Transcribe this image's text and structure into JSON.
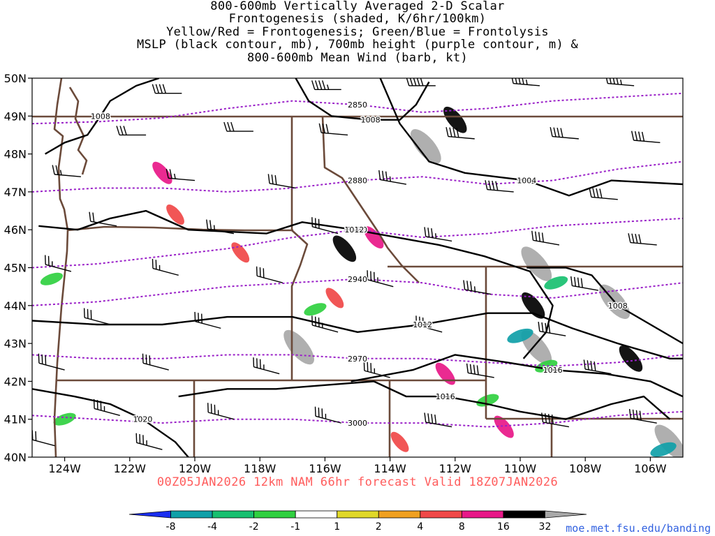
{
  "title_lines": [
    "800-600mb Vertically Averaged 2-D Scalar",
    "Frontogenesis (shaded, K/6hr/100km)",
    "Yellow/Red = Frontogenesis;  Green/Blue = Frontolysis",
    "MSLP (black contour, mb), 700mb height (purple contour, m) &",
    "800-600mb Mean Wind (barb, kt)"
  ],
  "valid_line": "00Z05JAN2026 12km NAM 66hr forecast Valid 18Z07JAN2026",
  "source": "moe.met.fsu.edu/banding",
  "colors": {
    "accent_text": "#ff5c5c",
    "source_link": "#3060e0",
    "state_borders": "#6b4a3a",
    "height_contours": "#9a20c8",
    "pressure_contours": "#000000"
  },
  "axes": {
    "lat_labels": [
      "50N",
      "49N",
      "48N",
      "47N",
      "46N",
      "45N",
      "44N",
      "43N",
      "42N",
      "41N",
      "40N"
    ],
    "lon_labels": [
      "124W",
      "122W",
      "120W",
      "118W",
      "116W",
      "114W",
      "112W",
      "110W",
      "108W",
      "106W"
    ]
  },
  "colorbar": {
    "labels": [
      "-8",
      "-4",
      "-2",
      "-1",
      "1",
      "2",
      "4",
      "8",
      "16",
      "32"
    ],
    "colors": [
      "#1a2ef0",
      "#10a0a8",
      "#18c070",
      "#30d040",
      "#ffffff",
      "#e0d828",
      "#f0a020",
      "#f04848",
      "#e81888",
      "#000000",
      "#a8a8a8"
    ]
  },
  "chart_data": {
    "type": "map",
    "extent": {
      "lon": [
        -125,
        -105
      ],
      "lat": [
        40,
        50
      ]
    },
    "height_contours_m": [
      {
        "label": "2850",
        "points": [
          [
            -125,
            48.8
          ],
          [
            -123,
            48.85
          ],
          [
            -121,
            48.95
          ],
          [
            -119,
            49.2
          ],
          [
            -117,
            49.4
          ],
          [
            -115,
            49.3
          ],
          [
            -113,
            49.1
          ],
          [
            -111,
            49.2
          ],
          [
            -109,
            49.4
          ],
          [
            -107,
            49.5
          ],
          [
            -105,
            49.6
          ]
        ]
      },
      {
        "label": "2880",
        "points": [
          [
            -125,
            47.0
          ],
          [
            -123,
            47.1
          ],
          [
            -121,
            47.1
          ],
          [
            -119,
            47.0
          ],
          [
            -117,
            47.1
          ],
          [
            -115,
            47.3
          ],
          [
            -113,
            47.4
          ],
          [
            -111,
            47.2
          ],
          [
            -109,
            47.3
          ],
          [
            -107,
            47.6
          ],
          [
            -105,
            47.8
          ]
        ]
      },
      {
        "label": "2910",
        "points": [
          [
            -125,
            45.0
          ],
          [
            -123,
            45.1
          ],
          [
            -121,
            45.3
          ],
          [
            -119,
            45.5
          ],
          [
            -117,
            45.8
          ],
          [
            -115,
            46.0
          ],
          [
            -113,
            45.8
          ],
          [
            -111,
            45.9
          ],
          [
            -109,
            46.1
          ],
          [
            -107,
            46.2
          ],
          [
            -105,
            46.3
          ]
        ]
      },
      {
        "label": "2940",
        "points": [
          [
            -125,
            44.0
          ],
          [
            -123,
            44.1
          ],
          [
            -121,
            44.3
          ],
          [
            -119,
            44.5
          ],
          [
            -117,
            44.6
          ],
          [
            -115,
            44.7
          ],
          [
            -113,
            44.6
          ],
          [
            -111,
            44.3
          ],
          [
            -109,
            44.2
          ],
          [
            -107,
            44.4
          ],
          [
            -105,
            44.6
          ]
        ]
      },
      {
        "label": "2970",
        "points": [
          [
            -125,
            42.7
          ],
          [
            -123,
            42.6
          ],
          [
            -121,
            42.6
          ],
          [
            -119,
            42.7
          ],
          [
            -117,
            42.7
          ],
          [
            -115,
            42.6
          ],
          [
            -113,
            42.6
          ],
          [
            -111,
            42.5
          ],
          [
            -109,
            42.4
          ],
          [
            -107,
            42.5
          ],
          [
            -105,
            42.7
          ]
        ]
      },
      {
        "label": "3000",
        "points": [
          [
            -125,
            41.1
          ],
          [
            -123,
            41.0
          ],
          [
            -121,
            40.9
          ],
          [
            -119,
            41.0
          ],
          [
            -117,
            41.0
          ],
          [
            -115,
            40.9
          ],
          [
            -113,
            40.9
          ],
          [
            -111,
            40.8
          ],
          [
            -109,
            40.9
          ],
          [
            -107,
            41.1
          ],
          [
            -105,
            41.2
          ]
        ]
      }
    ],
    "pressure_contours_mb": [
      {
        "label": "1008",
        "points": [
          [
            -124.6,
            48.0
          ],
          [
            -124.0,
            48.3
          ],
          [
            -123.3,
            48.5
          ],
          [
            -122.9,
            49.0
          ],
          [
            -122.6,
            49.4
          ],
          [
            -121.8,
            49.8
          ],
          [
            -121.1,
            50.0
          ]
        ]
      },
      {
        "label": "1008",
        "points": [
          [
            -116.9,
            50.0
          ],
          [
            -116.5,
            49.4
          ],
          [
            -115.8,
            49.0
          ],
          [
            -114.6,
            48.9
          ],
          [
            -113.7,
            48.9
          ],
          [
            -113.2,
            49.3
          ],
          [
            -112.8,
            49.9
          ]
        ]
      },
      {
        "label": "1004",
        "points": [
          [
            -114.3,
            50.0
          ],
          [
            -113.7,
            48.8
          ],
          [
            -112.8,
            47.8
          ],
          [
            -111.7,
            47.5
          ],
          [
            -109.8,
            47.3
          ],
          [
            -108.5,
            46.9
          ],
          [
            -107.2,
            47.3
          ],
          [
            -105.0,
            47.2
          ]
        ]
      },
      {
        "label": "1012",
        "points": [
          [
            -124.8,
            46.1
          ],
          [
            -123.6,
            46.0
          ],
          [
            -122.6,
            46.3
          ],
          [
            -121.5,
            46.5
          ],
          [
            -120.2,
            46.0
          ],
          [
            -117.8,
            45.9
          ],
          [
            -116.7,
            46.2
          ],
          [
            -115.1,
            46.0
          ],
          [
            -113.8,
            45.8
          ],
          [
            -112.5,
            45.6
          ],
          [
            -111.1,
            45.3
          ],
          [
            -109.7,
            44.9
          ],
          [
            -109.0,
            44.0
          ],
          [
            -109.2,
            43.3
          ],
          [
            -109.9,
            42.6
          ]
        ]
      },
      {
        "label": "1008",
        "points": [
          [
            -109.8,
            45.0
          ],
          [
            -108.6,
            45.0
          ],
          [
            -107.8,
            44.8
          ],
          [
            -107.0,
            44.0
          ],
          [
            -106.2,
            43.6
          ],
          [
            -105.0,
            43.0
          ]
        ]
      },
      {
        "label": "1012",
        "points": [
          [
            -125.0,
            43.6
          ],
          [
            -123.0,
            43.5
          ],
          [
            -121.0,
            43.5
          ],
          [
            -119.0,
            43.7
          ],
          [
            -117.0,
            43.7
          ],
          [
            -115.0,
            43.3
          ],
          [
            -113.0,
            43.5
          ],
          [
            -111.0,
            43.8
          ],
          [
            -109.6,
            43.8
          ],
          [
            -108.4,
            43.4
          ],
          [
            -107.0,
            43.0
          ],
          [
            -105.4,
            42.6
          ],
          [
            -105.0,
            42.6
          ]
        ]
      },
      {
        "label": "1016",
        "points": [
          [
            -115.2,
            42.0
          ],
          [
            -113.3,
            42.3
          ],
          [
            -112.0,
            42.7
          ],
          [
            -110.4,
            42.5
          ],
          [
            -109.0,
            42.3
          ],
          [
            -107.4,
            42.2
          ],
          [
            -106.0,
            42.0
          ],
          [
            -105.0,
            41.6
          ]
        ]
      },
      {
        "label": "1016",
        "points": [
          [
            -120.5,
            41.6
          ],
          [
            -119.0,
            41.8
          ],
          [
            -117.5,
            41.8
          ],
          [
            -116.0,
            41.9
          ],
          [
            -114.5,
            42.0
          ],
          [
            -113.5,
            41.6
          ],
          [
            -112.3,
            41.6
          ],
          [
            -111.0,
            41.4
          ],
          [
            -110.0,
            41.2
          ],
          [
            -108.6,
            41.0
          ],
          [
            -107.2,
            41.4
          ],
          [
            -106.2,
            41.6
          ],
          [
            -105.4,
            41.0
          ]
        ]
      },
      {
        "label": "1020",
        "points": [
          [
            -125.0,
            41.8
          ],
          [
            -123.7,
            41.6
          ],
          [
            -122.6,
            41.4
          ],
          [
            -121.6,
            41.0
          ],
          [
            -120.6,
            40.4
          ],
          [
            -120.2,
            40.0
          ]
        ]
      }
    ],
    "frontogenesis_bands": [
      {
        "lon": -112.9,
        "lat": 48.2,
        "value": 32
      },
      {
        "lon": -112.0,
        "lat": 48.9,
        "value": 16
      },
      {
        "lon": -116.8,
        "lat": 42.9,
        "value": 32
      },
      {
        "lon": -115.4,
        "lat": 45.5,
        "value": 16
      },
      {
        "lon": -114.5,
        "lat": 45.8,
        "value": 8
      },
      {
        "lon": -109.5,
        "lat": 45.1,
        "value": 32
      },
      {
        "lon": -109.6,
        "lat": 44.0,
        "value": 16
      },
      {
        "lon": -109.5,
        "lat": 42.9,
        "value": 32
      },
      {
        "lon": -107.1,
        "lat": 44.1,
        "value": 32
      },
      {
        "lon": -106.6,
        "lat": 42.6,
        "value": 16
      },
      {
        "lon": -105.4,
        "lat": 40.4,
        "value": 32
      },
      {
        "lon": -112.3,
        "lat": 42.2,
        "value": 8
      },
      {
        "lon": -110.5,
        "lat": 40.8,
        "value": 8
      },
      {
        "lon": -121.0,
        "lat": 47.5,
        "value": 8
      },
      {
        "lon": -120.6,
        "lat": 46.4,
        "value": 4
      },
      {
        "lon": -118.6,
        "lat": 45.4,
        "value": 4
      },
      {
        "lon": -113.7,
        "lat": 40.4,
        "value": 4
      },
      {
        "lon": -115.7,
        "lat": 44.2,
        "value": 4
      }
    ],
    "frontolysis_bands": [
      {
        "lon": -110.0,
        "lat": 43.2,
        "value": -8
      },
      {
        "lon": -105.6,
        "lat": 40.2,
        "value": -8
      },
      {
        "lon": -108.9,
        "lat": 44.6,
        "value": -4
      },
      {
        "lon": -124.0,
        "lat": 41.0,
        "value": -2
      },
      {
        "lon": -124.4,
        "lat": 44.7,
        "value": -2
      },
      {
        "lon": -116.3,
        "lat": 43.9,
        "value": -2
      },
      {
        "lon": -111.0,
        "lat": 41.5,
        "value": -2
      },
      {
        "lon": -109.2,
        "lat": 42.4,
        "value": -2
      },
      {
        "lon": -118.0,
        "lat": 44.8,
        "value": -1
      },
      {
        "lon": -121.5,
        "lat": 48.2,
        "value": -1
      },
      {
        "lon": -114.5,
        "lat": 46.7,
        "value": -1
      }
    ],
    "wind_barbs_kt": [
      {
        "lon": -120.4,
        "lat": 49.6,
        "speed": 40,
        "dir": 270
      },
      {
        "lon": -115.5,
        "lat": 49.7,
        "speed": 45,
        "dir": 270
      },
      {
        "lon": -112.6,
        "lat": 49.8,
        "speed": 50,
        "dir": 270
      },
      {
        "lon": -109.4,
        "lat": 49.8,
        "speed": 45,
        "dir": 265
      },
      {
        "lon": -106.5,
        "lat": 49.8,
        "speed": 45,
        "dir": 265
      },
      {
        "lon": -121.5,
        "lat": 48.5,
        "speed": 30,
        "dir": 270
      },
      {
        "lon": -118.2,
        "lat": 48.6,
        "speed": 30,
        "dir": 270
      },
      {
        "lon": -115.3,
        "lat": 48.5,
        "speed": 30,
        "dir": 265
      },
      {
        "lon": -111.4,
        "lat": 48.4,
        "speed": 40,
        "dir": 265
      },
      {
        "lon": -108.2,
        "lat": 48.4,
        "speed": 40,
        "dir": 265
      },
      {
        "lon": -105.7,
        "lat": 48.3,
        "speed": 40,
        "dir": 265
      },
      {
        "lon": -123.5,
        "lat": 47.4,
        "speed": 25,
        "dir": 265
      },
      {
        "lon": -120.0,
        "lat": 47.3,
        "speed": 25,
        "dir": 265
      },
      {
        "lon": -116.9,
        "lat": 47.1,
        "speed": 30,
        "dir": 260
      },
      {
        "lon": -113.5,
        "lat": 47.2,
        "speed": 35,
        "dir": 260
      },
      {
        "lon": -110.2,
        "lat": 47.0,
        "speed": 40,
        "dir": 265
      },
      {
        "lon": -107.0,
        "lat": 46.8,
        "speed": 40,
        "dir": 265
      },
      {
        "lon": -122.4,
        "lat": 46.1,
        "speed": 20,
        "dir": 260
      },
      {
        "lon": -118.8,
        "lat": 45.9,
        "speed": 25,
        "dir": 260
      },
      {
        "lon": -115.6,
        "lat": 45.9,
        "speed": 30,
        "dir": 255
      },
      {
        "lon": -112.1,
        "lat": 45.7,
        "speed": 35,
        "dir": 260
      },
      {
        "lon": -108.8,
        "lat": 45.6,
        "speed": 40,
        "dir": 260
      },
      {
        "lon": -105.8,
        "lat": 45.6,
        "speed": 40,
        "dir": 265
      },
      {
        "lon": -123.8,
        "lat": 44.9,
        "speed": 25,
        "dir": 255
      },
      {
        "lon": -120.5,
        "lat": 44.8,
        "speed": 25,
        "dir": 255
      },
      {
        "lon": -117.3,
        "lat": 44.6,
        "speed": 30,
        "dir": 255
      },
      {
        "lon": -113.9,
        "lat": 44.5,
        "speed": 35,
        "dir": 255
      },
      {
        "lon": -110.9,
        "lat": 44.3,
        "speed": 35,
        "dir": 260
      },
      {
        "lon": -107.6,
        "lat": 44.4,
        "speed": 40,
        "dir": 260
      },
      {
        "lon": -122.6,
        "lat": 43.5,
        "speed": 30,
        "dir": 255
      },
      {
        "lon": -119.2,
        "lat": 43.4,
        "speed": 30,
        "dir": 255
      },
      {
        "lon": -115.6,
        "lat": 43.3,
        "speed": 35,
        "dir": 255
      },
      {
        "lon": -112.4,
        "lat": 43.3,
        "speed": 35,
        "dir": 255
      },
      {
        "lon": -108.6,
        "lat": 43.2,
        "speed": 40,
        "dir": 260
      },
      {
        "lon": -124.0,
        "lat": 42.3,
        "speed": 30,
        "dir": 255
      },
      {
        "lon": -120.8,
        "lat": 42.3,
        "speed": 30,
        "dir": 255
      },
      {
        "lon": -117.4,
        "lat": 42.2,
        "speed": 35,
        "dir": 255
      },
      {
        "lon": -114.0,
        "lat": 42.1,
        "speed": 35,
        "dir": 255
      },
      {
        "lon": -110.8,
        "lat": 42.1,
        "speed": 40,
        "dir": 260
      },
      {
        "lon": -107.2,
        "lat": 42.2,
        "speed": 40,
        "dir": 260
      },
      {
        "lon": -122.3,
        "lat": 41.1,
        "speed": 35,
        "dir": 255
      },
      {
        "lon": -118.8,
        "lat": 41.0,
        "speed": 35,
        "dir": 255
      },
      {
        "lon": -115.5,
        "lat": 40.9,
        "speed": 35,
        "dir": 255
      },
      {
        "lon": -112.1,
        "lat": 40.8,
        "speed": 40,
        "dir": 260
      },
      {
        "lon": -108.5,
        "lat": 40.8,
        "speed": 40,
        "dir": 260
      },
      {
        "lon": -105.8,
        "lat": 40.9,
        "speed": 40,
        "dir": 260
      },
      {
        "lon": -124.3,
        "lat": 40.3,
        "speed": 30,
        "dir": 255
      },
      {
        "lon": -121.0,
        "lat": 40.2,
        "speed": 35,
        "dir": 255
      }
    ]
  }
}
